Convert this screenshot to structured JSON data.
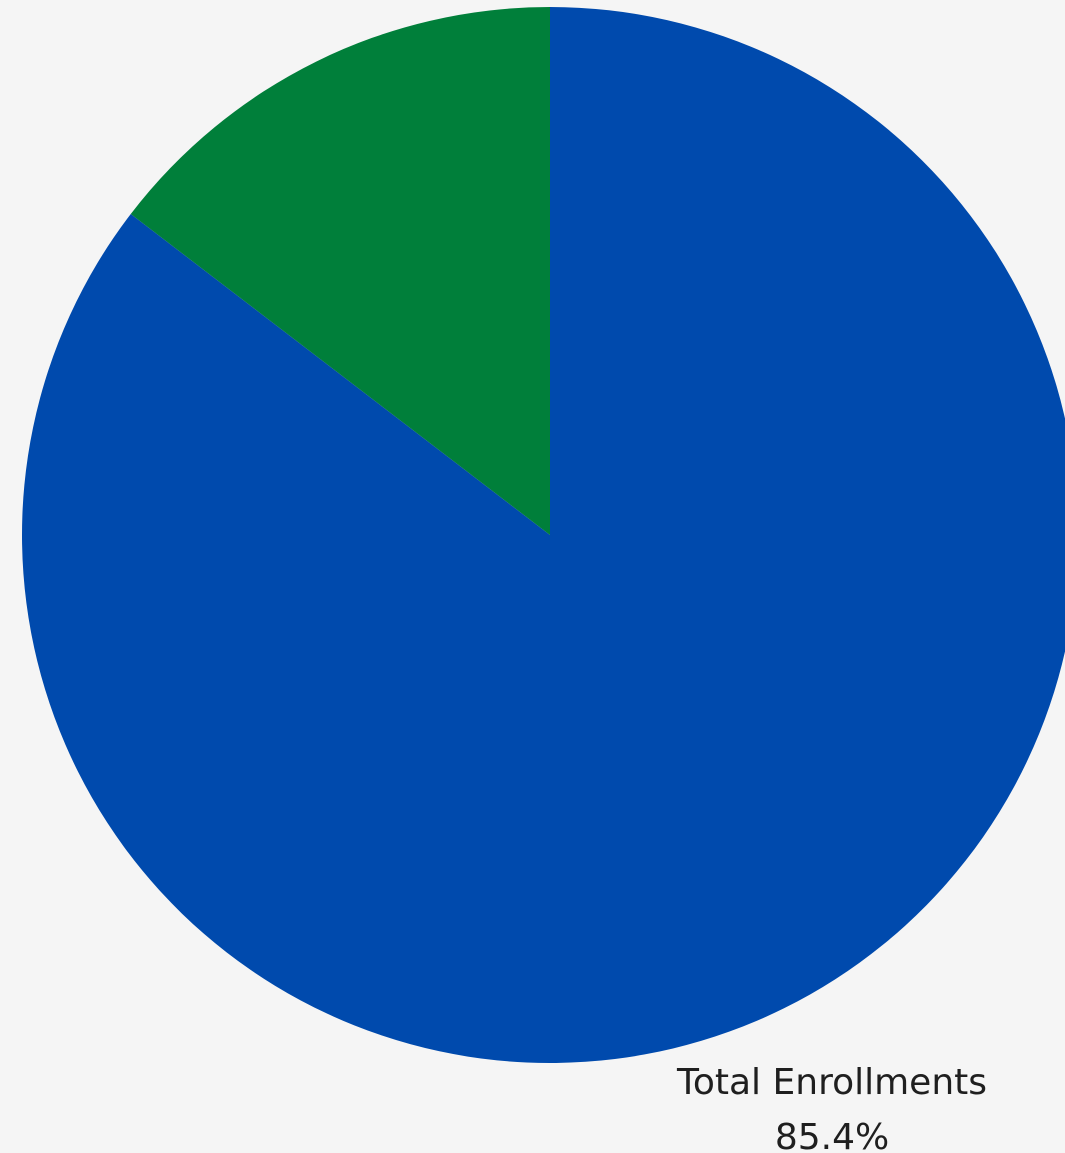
{
  "chart_data": {
    "type": "pie",
    "title": "",
    "series": [
      {
        "values": [
          85.4,
          14.6
        ],
        "labels": [
          "Total Enrollments",
          ""
        ],
        "value_labels": [
          "85.4%",
          ""
        ],
        "colors": [
          "#004aad",
          "#007f3a"
        ]
      }
    ],
    "start_angle": "12 o'clock",
    "direction": "clockwise",
    "legend": "none"
  },
  "background_color": "#f5f5f5"
}
